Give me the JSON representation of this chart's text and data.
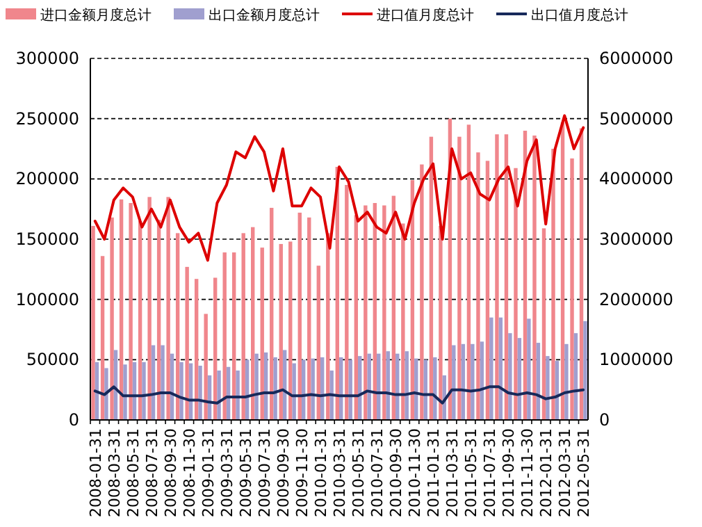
{
  "chart_data": {
    "type": "bar",
    "categories": [
      "2008-01-31",
      null,
      "2008-03-31",
      null,
      "2008-05-31",
      null,
      "2008-07-31",
      null,
      "2008-09-30",
      null,
      "2008-11-30",
      null,
      "2009-01-31",
      null,
      "2009-03-31",
      null,
      "2009-05-31",
      null,
      "2009-07-31",
      null,
      "2009-09-30",
      null,
      "2009-11-30",
      null,
      "2010-01-31",
      null,
      "2010-03-31",
      null,
      "2010-05-31",
      null,
      "2010-07-31",
      null,
      "2010-09-30",
      null,
      "2010-11-30",
      null,
      "2011-01-31",
      null,
      "2011-03-31",
      null,
      "2011-05-31",
      null,
      "2011-07-31",
      null,
      "2011-09-30",
      null,
      "2011-11-30",
      null,
      "2012-01-31",
      null,
      "2012-03-31",
      null,
      "2012-05-31"
    ],
    "series": [
      {
        "name": "进口金额月度总计",
        "color": "#f0868c",
        "values": [
          161000,
          136000,
          168000,
          183000,
          180000,
          165000,
          185000,
          166000,
          185000,
          155000,
          127000,
          117000,
          88000,
          118000,
          139000,
          139000,
          155000,
          160000,
          143000,
          176000,
          146000,
          148000,
          172000,
          168000,
          128000,
          155000,
          210000,
          195000,
          170000,
          178000,
          180000,
          178000,
          186000,
          163000,
          199000,
          212000,
          235000,
          161000,
          250000,
          235000,
          245000,
          222000,
          215000,
          237000,
          237000,
          209000,
          240000,
          236000,
          159000,
          225000,
          247000,
          217000,
          242000
        ]
      },
      {
        "name": "出口金额月度总计",
        "color": "#a09fcf",
        "values": [
          48000,
          43000,
          58000,
          46000,
          48000,
          48000,
          62000,
          62000,
          55000,
          48000,
          47000,
          45000,
          37000,
          41000,
          44000,
          41000,
          50000,
          55000,
          56000,
          52000,
          58000,
          47000,
          50000,
          51000,
          52000,
          41000,
          52000,
          50000,
          53000,
          55000,
          55000,
          57000,
          55000,
          57000,
          51000,
          50000,
          52000,
          37000,
          62000,
          63000,
          63000,
          65000,
          85000,
          85000,
          72000,
          68000,
          84000,
          64000,
          53000,
          49000,
          63000,
          72000,
          82000
        ]
      },
      {
        "name": "进口值月度总计",
        "type": "line",
        "axis": "y2",
        "color": "#dd0000",
        "values": [
          3300000,
          3000000,
          3650000,
          3850000,
          3700000,
          3200000,
          3500000,
          3200000,
          3650000,
          3200000,
          2950000,
          3100000,
          2650000,
          3600000,
          3900000,
          4450000,
          4350000,
          4700000,
          4450000,
          3800000,
          4500000,
          3550000,
          3550000,
          3850000,
          3700000,
          2850000,
          4200000,
          3950000,
          3300000,
          3450000,
          3200000,
          3100000,
          3450000,
          3000000,
          3600000,
          4000000,
          4250000,
          3000000,
          4500000,
          4000000,
          4100000,
          3750000,
          3650000,
          4000000,
          4200000,
          3550000,
          4300000,
          4650000,
          3250000,
          4500000,
          5050000,
          4500000,
          4850000
        ]
      },
      {
        "name": "出口值月度总计",
        "type": "line",
        "axis": "y2",
        "color": "#17295a",
        "values": [
          480000,
          420000,
          550000,
          400000,
          400000,
          400000,
          420000,
          450000,
          450000,
          380000,
          330000,
          330000,
          300000,
          280000,
          380000,
          380000,
          380000,
          420000,
          450000,
          450000,
          500000,
          400000,
          400000,
          420000,
          400000,
          420000,
          400000,
          400000,
          400000,
          480000,
          450000,
          450000,
          420000,
          420000,
          450000,
          420000,
          420000,
          280000,
          500000,
          500000,
          480000,
          500000,
          550000,
          550000,
          450000,
          420000,
          450000,
          420000,
          350000,
          380000,
          450000,
          480000,
          500000
        ]
      }
    ],
    "ylim": [
      0,
      300000
    ],
    "yticks": [
      0,
      50000,
      100000,
      150000,
      200000,
      250000,
      300000
    ],
    "y2lim": [
      0,
      6000000
    ],
    "y2ticks": [
      0,
      1000000,
      2000000,
      3000000,
      4000000,
      5000000,
      6000000
    ],
    "grid": "y",
    "legend": "top"
  }
}
